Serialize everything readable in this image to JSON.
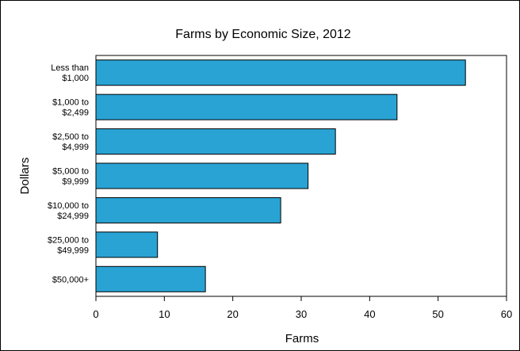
{
  "chart_data": {
    "type": "bar",
    "orientation": "horizontal",
    "title": "Farms by Economic Size, 2012",
    "xlabel": "Farms",
    "ylabel": "Dollars",
    "categories": [
      [
        "Less than",
        "$1,000"
      ],
      [
        "$1,000 to",
        "$2,499"
      ],
      [
        "$2,500 to",
        "$4,999"
      ],
      [
        "$5,000 to",
        "$9,999"
      ],
      [
        "$10,000 to",
        "$24,999"
      ],
      [
        "$25,000 to",
        "$49,999"
      ],
      [
        "$50,000+"
      ]
    ],
    "values": [
      54,
      44,
      35,
      31,
      27,
      9,
      16
    ],
    "xlim": [
      0,
      60
    ],
    "xticks": [
      0,
      10,
      20,
      30,
      40,
      50,
      60
    ],
    "grid": false,
    "bar_color": "#29a3d4"
  }
}
